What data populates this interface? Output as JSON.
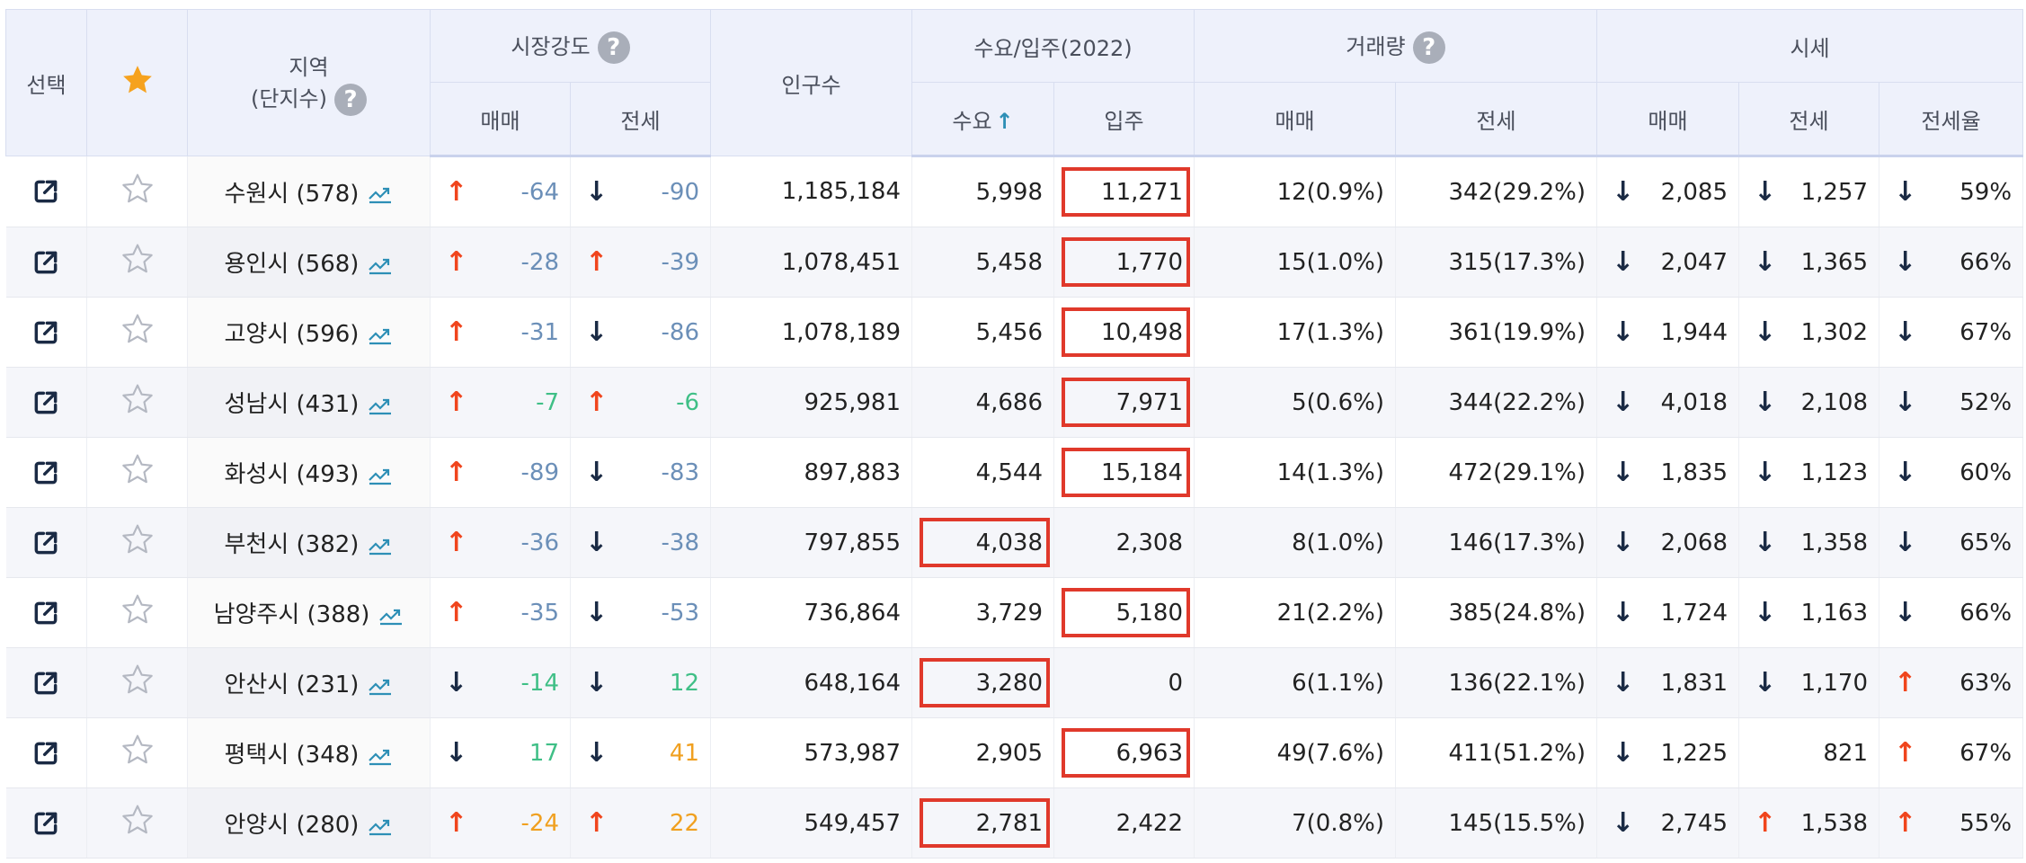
{
  "headers": {
    "select": "선택",
    "region_line1": "지역",
    "region_line2": "(단지수)",
    "market_strength": "시장강도",
    "population": "인구수",
    "supply_demand": "수요/입주(2022)",
    "volume": "거래량",
    "price": "시세",
    "sale": "매매",
    "jeonse": "전세",
    "demand": "수요",
    "move_in": "입주",
    "jeonse_ratio": "전세율",
    "help_glyph": "?"
  },
  "colors": {
    "up_arrow": "#f0451d",
    "down_arrow": "#1a2a44",
    "highlight_box": "#e0392b",
    "strength_blue": "#6b8fb8",
    "strength_green": "#3fbf86",
    "strength_orange": "#f0a020",
    "star": "#f6a21e"
  },
  "rows": [
    {
      "region": "수원시 (578)",
      "ms_sale_dir": "up",
      "ms_sale": "-64",
      "ms_sale_color": "blue",
      "ms_jeonse_dir": "down",
      "ms_jeonse": "-90",
      "ms_jeonse_color": "blue",
      "population": "1,185,184",
      "demand": "5,998",
      "movein": "11,271",
      "highlight": "movein",
      "vol_sale": "12(0.9%)",
      "vol_jeonse": "342(29.2%)",
      "p_sale_dir": "down",
      "p_sale": "2,085",
      "p_jeonse_dir": "down",
      "p_jeonse": "1,257",
      "ratio_dir": "down",
      "ratio": "59%"
    },
    {
      "region": "용인시 (568)",
      "ms_sale_dir": "up",
      "ms_sale": "-28",
      "ms_sale_color": "blue",
      "ms_jeonse_dir": "up",
      "ms_jeonse": "-39",
      "ms_jeonse_color": "blue",
      "population": "1,078,451",
      "demand": "5,458",
      "movein": "1,770",
      "highlight": "movein",
      "vol_sale": "15(1.0%)",
      "vol_jeonse": "315(17.3%)",
      "p_sale_dir": "down",
      "p_sale": "2,047",
      "p_jeonse_dir": "down",
      "p_jeonse": "1,365",
      "ratio_dir": "down",
      "ratio": "66%"
    },
    {
      "region": "고양시 (596)",
      "ms_sale_dir": "up",
      "ms_sale": "-31",
      "ms_sale_color": "blue",
      "ms_jeonse_dir": "down",
      "ms_jeonse": "-86",
      "ms_jeonse_color": "blue",
      "population": "1,078,189",
      "demand": "5,456",
      "movein": "10,498",
      "highlight": "movein",
      "vol_sale": "17(1.3%)",
      "vol_jeonse": "361(19.9%)",
      "p_sale_dir": "down",
      "p_sale": "1,944",
      "p_jeonse_dir": "down",
      "p_jeonse": "1,302",
      "ratio_dir": "down",
      "ratio": "67%"
    },
    {
      "region": "성남시 (431)",
      "ms_sale_dir": "up",
      "ms_sale": "-7",
      "ms_sale_color": "green",
      "ms_jeonse_dir": "up",
      "ms_jeonse": "-6",
      "ms_jeonse_color": "green",
      "population": "925,981",
      "demand": "4,686",
      "movein": "7,971",
      "highlight": "movein",
      "vol_sale": "5(0.6%)",
      "vol_jeonse": "344(22.2%)",
      "p_sale_dir": "down",
      "p_sale": "4,018",
      "p_jeonse_dir": "down",
      "p_jeonse": "2,108",
      "ratio_dir": "down",
      "ratio": "52%"
    },
    {
      "region": "화성시 (493)",
      "ms_sale_dir": "up",
      "ms_sale": "-89",
      "ms_sale_color": "blue",
      "ms_jeonse_dir": "down",
      "ms_jeonse": "-83",
      "ms_jeonse_color": "blue",
      "population": "897,883",
      "demand": "4,544",
      "movein": "15,184",
      "highlight": "movein",
      "vol_sale": "14(1.3%)",
      "vol_jeonse": "472(29.1%)",
      "p_sale_dir": "down",
      "p_sale": "1,835",
      "p_jeonse_dir": "down",
      "p_jeonse": "1,123",
      "ratio_dir": "down",
      "ratio": "60%"
    },
    {
      "region": "부천시 (382)",
      "ms_sale_dir": "up",
      "ms_sale": "-36",
      "ms_sale_color": "blue",
      "ms_jeonse_dir": "down",
      "ms_jeonse": "-38",
      "ms_jeonse_color": "blue",
      "population": "797,855",
      "demand": "4,038",
      "movein": "2,308",
      "highlight": "demand",
      "vol_sale": "8(1.0%)",
      "vol_jeonse": "146(17.3%)",
      "p_sale_dir": "down",
      "p_sale": "2,068",
      "p_jeonse_dir": "down",
      "p_jeonse": "1,358",
      "ratio_dir": "down",
      "ratio": "65%"
    },
    {
      "region": "남양주시 (388)",
      "ms_sale_dir": "up",
      "ms_sale": "-35",
      "ms_sale_color": "blue",
      "ms_jeonse_dir": "down",
      "ms_jeonse": "-53",
      "ms_jeonse_color": "blue",
      "population": "736,864",
      "demand": "3,729",
      "movein": "5,180",
      "highlight": "movein",
      "vol_sale": "21(2.2%)",
      "vol_jeonse": "385(24.8%)",
      "p_sale_dir": "down",
      "p_sale": "1,724",
      "p_jeonse_dir": "down",
      "p_jeonse": "1,163",
      "ratio_dir": "down",
      "ratio": "66%"
    },
    {
      "region": "안산시 (231)",
      "ms_sale_dir": "down",
      "ms_sale": "-14",
      "ms_sale_color": "green",
      "ms_jeonse_dir": "down",
      "ms_jeonse": "12",
      "ms_jeonse_color": "green",
      "population": "648,164",
      "demand": "3,280",
      "movein": "0",
      "highlight": "demand",
      "vol_sale": "6(1.1%)",
      "vol_jeonse": "136(22.1%)",
      "p_sale_dir": "down",
      "p_sale": "1,831",
      "p_jeonse_dir": "down",
      "p_jeonse": "1,170",
      "ratio_dir": "up",
      "ratio": "63%"
    },
    {
      "region": "평택시 (348)",
      "ms_sale_dir": "down",
      "ms_sale": "17",
      "ms_sale_color": "green",
      "ms_jeonse_dir": "down",
      "ms_jeonse": "41",
      "ms_jeonse_color": "orange",
      "population": "573,987",
      "demand": "2,905",
      "movein": "6,963",
      "highlight": "movein",
      "vol_sale": "49(7.6%)",
      "vol_jeonse": "411(51.2%)",
      "p_sale_dir": "down",
      "p_sale": "1,225",
      "p_jeonse_dir": "none",
      "p_jeonse": "821",
      "ratio_dir": "up",
      "ratio": "67%"
    },
    {
      "region": "안양시 (280)",
      "ms_sale_dir": "up",
      "ms_sale": "-24",
      "ms_sale_color": "orange",
      "ms_jeonse_dir": "up",
      "ms_jeonse": "22",
      "ms_jeonse_color": "orange",
      "population": "549,457",
      "demand": "2,781",
      "movein": "2,422",
      "highlight": "demand",
      "vol_sale": "7(0.8%)",
      "vol_jeonse": "145(15.5%)",
      "p_sale_dir": "down",
      "p_sale": "2,745",
      "p_jeonse_dir": "up",
      "p_jeonse": "1,538",
      "ratio_dir": "up",
      "ratio": "55%"
    }
  ]
}
